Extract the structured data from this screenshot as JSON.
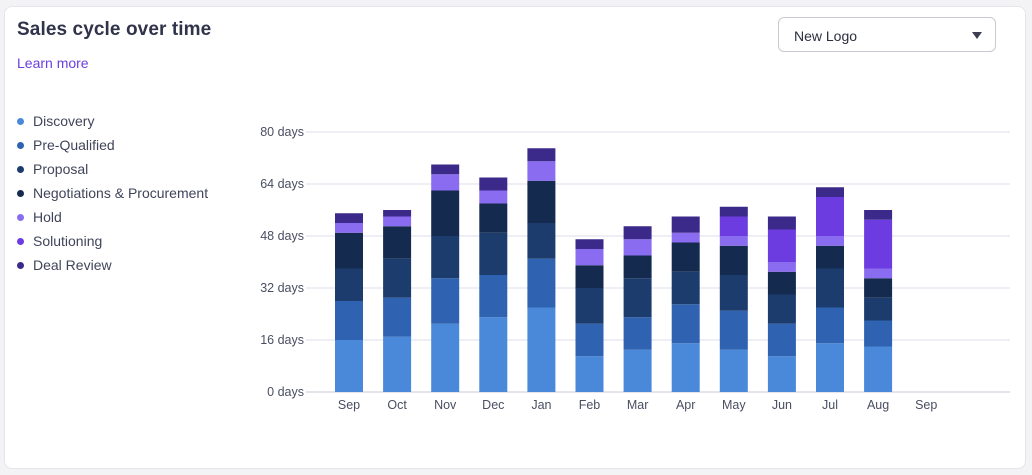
{
  "header": {
    "title": "Sales cycle over time",
    "learn_more": "Learn more"
  },
  "filter": {
    "selected": "New Logo"
  },
  "chart_data": {
    "type": "bar",
    "stacked": true,
    "title": "Sales cycle over time",
    "xlabel": "",
    "ylabel": "",
    "ylim": [
      0,
      80
    ],
    "yticks": [
      0,
      16,
      32,
      48,
      64,
      80
    ],
    "ytick_labels": [
      "0 days",
      "16 days",
      "32 days",
      "48 days",
      "64 days",
      "80 days"
    ],
    "categories": [
      "Sep",
      "Oct",
      "Nov",
      "Dec",
      "Jan",
      "Feb",
      "Mar",
      "Apr",
      "May",
      "Jun",
      "Jul",
      "Aug",
      "Sep"
    ],
    "series": [
      {
        "name": "Discovery",
        "color": "#4a88d9",
        "values": [
          16,
          17,
          21,
          23,
          26,
          11,
          13,
          15,
          13,
          11,
          15,
          14,
          null
        ]
      },
      {
        "name": "Pre-Qualified",
        "color": "#2f62b0",
        "values": [
          12,
          12,
          14,
          13,
          15,
          10,
          10,
          12,
          12,
          10,
          11,
          8,
          null
        ]
      },
      {
        "name": "Proposal",
        "color": "#1d3c6e",
        "values": [
          10,
          12,
          13,
          13,
          11,
          11,
          12,
          10,
          11,
          9,
          12,
          7,
          null
        ]
      },
      {
        "name": "Negotiations & Procurement",
        "color": "#142a4e",
        "values": [
          11,
          10,
          14,
          9,
          13,
          7,
          7,
          9,
          9,
          7,
          7,
          6,
          null
        ]
      },
      {
        "name": "Hold",
        "color": "#8a6cf0",
        "values": [
          3,
          3,
          5,
          4,
          6,
          5,
          5,
          3,
          3,
          3,
          3,
          3,
          null
        ]
      },
      {
        "name": "Solutioning",
        "color": "#6d3ce0",
        "values": [
          0,
          0,
          0,
          0,
          0,
          0,
          0,
          0,
          6,
          10,
          12,
          15,
          null
        ]
      },
      {
        "name": "Deal Review",
        "color": "#3c2a8a",
        "values": [
          3,
          2,
          3,
          4,
          4,
          3,
          4,
          5,
          3,
          4,
          3,
          3,
          null
        ]
      }
    ]
  }
}
